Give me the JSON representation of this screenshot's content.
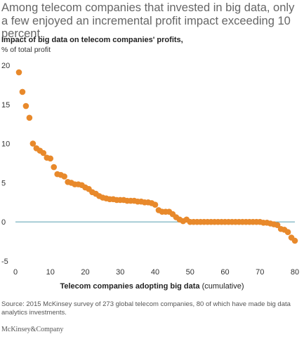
{
  "headline": "Among telecom companies that invested in big data, only a few enjoyed an incremental profit impact exceeding 10 percent.",
  "source": "Source: 2015 McKinsey survey of 273 global telecom companies, 80 of which have made big data analytics investments.",
  "brand": "McKinsey&Company",
  "colors": {
    "point": "#e8892b",
    "zero_line": "#6aaab8",
    "axis": "#999999"
  },
  "chart_data": {
    "type": "scatter",
    "title": "Impact of big data on telecom companies' profits,",
    "ylabel": "% of total profit",
    "xlabel_bold": "Telecom companies adopting big data",
    "xlabel_rest": " (cumulative)",
    "xlim": [
      0,
      80
    ],
    "ylim": [
      -5,
      20
    ],
    "x_ticks": [
      0,
      10,
      20,
      30,
      40,
      50,
      60,
      70,
      80
    ],
    "y_ticks": [
      20,
      15,
      10,
      5,
      0,
      -5
    ],
    "reference_line": 0,
    "x": [
      1,
      2,
      3,
      4,
      5,
      6,
      7,
      8,
      9,
      10,
      11,
      12,
      13,
      14,
      15,
      16,
      17,
      18,
      19,
      20,
      21,
      22,
      23,
      24,
      25,
      26,
      27,
      28,
      29,
      30,
      31,
      32,
      33,
      34,
      35,
      36,
      37,
      38,
      39,
      40,
      41,
      42,
      43,
      44,
      45,
      46,
      47,
      48,
      49,
      50,
      51,
      52,
      53,
      54,
      55,
      56,
      57,
      58,
      59,
      60,
      61,
      62,
      63,
      64,
      65,
      66,
      67,
      68,
      69,
      70,
      71,
      72,
      73,
      74,
      75,
      76,
      77,
      78,
      79,
      80
    ],
    "y": [
      19.1,
      16.6,
      14.8,
      13.3,
      10.0,
      9.4,
      9.1,
      8.8,
      8.2,
      8.1,
      7.0,
      6.1,
      6.0,
      5.8,
      5.1,
      5.0,
      4.8,
      4.8,
      4.7,
      4.4,
      4.2,
      3.8,
      3.6,
      3.3,
      3.1,
      3.0,
      2.9,
      2.9,
      2.8,
      2.8,
      2.8,
      2.7,
      2.7,
      2.7,
      2.6,
      2.6,
      2.5,
      2.5,
      2.4,
      2.2,
      1.5,
      1.3,
      1.3,
      1.3,
      1.0,
      0.6,
      0.3,
      0.1,
      0.3,
      0.0,
      0.0,
      0.0,
      0.0,
      0.0,
      0.0,
      0.0,
      0.0,
      0.0,
      0.0,
      0.0,
      0.0,
      0.0,
      0.0,
      0.0,
      0.0,
      0.0,
      0.0,
      0.0,
      0.0,
      0.0,
      -0.1,
      -0.1,
      -0.2,
      -0.3,
      -0.4,
      -0.9,
      -1.0,
      -1.3,
      -2.0,
      -2.4
    ]
  }
}
